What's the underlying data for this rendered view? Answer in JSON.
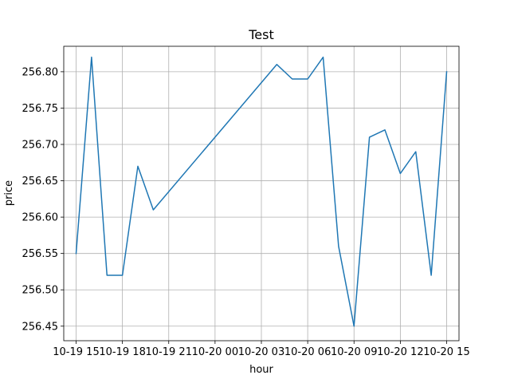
{
  "chart_data": {
    "type": "line",
    "title": "Test",
    "xlabel": "hour",
    "ylabel": "price",
    "grid": true,
    "x_ticks": [
      {
        "hour": 15,
        "label": "10-19 15"
      },
      {
        "hour": 18,
        "label": "10-19 18"
      },
      {
        "hour": 21,
        "label": "10-19 21"
      },
      {
        "hour": 24,
        "label": "10-20 00"
      },
      {
        "hour": 27,
        "label": "10-20 03"
      },
      {
        "hour": 30,
        "label": "10-20 06"
      },
      {
        "hour": 33,
        "label": "10-20 09"
      },
      {
        "hour": 36,
        "label": "10-20 12"
      },
      {
        "hour": 39,
        "label": "10-20 15"
      }
    ],
    "y_ticks": [
      256.45,
      256.5,
      256.55,
      256.6,
      256.65,
      256.7,
      256.75,
      256.8
    ],
    "xlim": [
      14.2,
      39.8
    ],
    "ylim": [
      256.43,
      256.835
    ],
    "series": [
      {
        "color": "#1f77b4",
        "points": [
          [
            15,
            256.55
          ],
          [
            16,
            256.82
          ],
          [
            17,
            256.52
          ],
          [
            18,
            256.52
          ],
          [
            19,
            256.67
          ],
          [
            20,
            256.61
          ],
          [
            28,
            256.81
          ],
          [
            29,
            256.79
          ],
          [
            30,
            256.79
          ],
          [
            31,
            256.82
          ],
          [
            32,
            256.56
          ],
          [
            33,
            256.45
          ],
          [
            34,
            256.71
          ],
          [
            35,
            256.72
          ],
          [
            36,
            256.66
          ],
          [
            37,
            256.69
          ],
          [
            38,
            256.52
          ],
          [
            39,
            256.8
          ]
        ]
      }
    ]
  }
}
